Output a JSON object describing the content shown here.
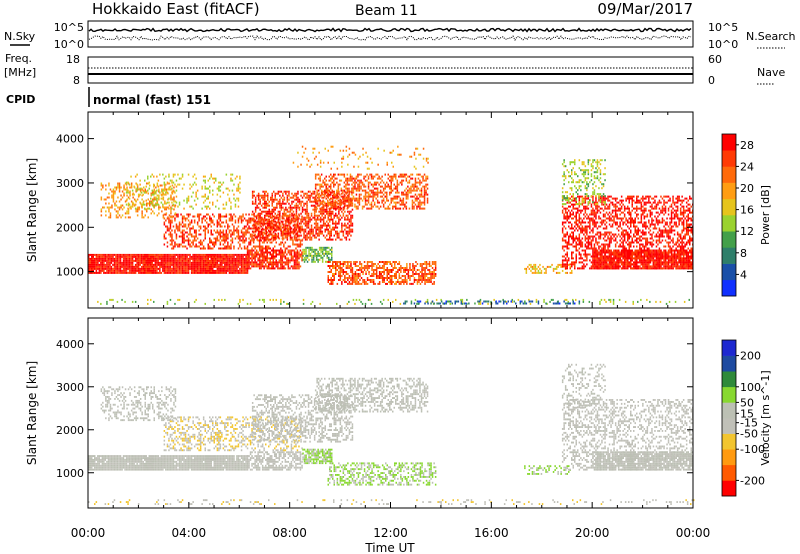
{
  "header": {
    "station": "Hokkaido East (fitACF)",
    "beam": "Beam 11",
    "date": "09/Mar/2017"
  },
  "small_panels": {
    "nsky_label": "N.Sky",
    "nsearch_label": "N.Search",
    "noise_ticks": [
      "10^5",
      "10^0"
    ],
    "freq_label_1": "Freq.",
    "freq_label_2": "[MHz]",
    "freq_ticks_left": [
      "18",
      "8"
    ],
    "nave_label": "Nave",
    "nave_ticks_right": [
      "60",
      "0"
    ],
    "cpid_label": "CPID",
    "cpid_text": "normal (fast) 151"
  },
  "colors": {
    "power": [
      "#1030ff",
      "#1a50a8",
      "#2e7f6a",
      "#43a04a",
      "#9ad22f",
      "#e6c41c",
      "#ff9d13",
      "#ff6a0a",
      "#ff3a04",
      "#ff0000"
    ],
    "velocity": [
      "#ff0000",
      "#ff5a00",
      "#ff9a10",
      "#f2c530",
      "#c0c0b8",
      "#bcc0b4",
      "#88d830",
      "#2f8a3a",
      "#1e4aa0",
      "#1d28d0"
    ]
  },
  "chart_data": [
    {
      "type": "heatmap",
      "name": "power",
      "xlabel": "",
      "ylabel": "Slant Range [km]",
      "x_range": [
        0,
        24
      ],
      "ylim": [
        180,
        4600
      ],
      "y_ticks": [
        1000,
        2000,
        3000,
        4000
      ],
      "colorbar": {
        "label": "Power [dB]",
        "ticks": [
          4,
          8,
          12,
          16,
          20,
          24,
          28
        ],
        "range": [
          0,
          30
        ]
      },
      "regions": [
        {
          "x": [
            0,
            6.3
          ],
          "y": [
            950,
            1400
          ],
          "value": 28,
          "density": 0.95
        },
        {
          "x": [
            6.3,
            8.5
          ],
          "y": [
            1050,
            1500
          ],
          "value": 26,
          "density": 0.8
        },
        {
          "x": [
            3.0,
            8.5
          ],
          "y": [
            1500,
            2300
          ],
          "value": 25,
          "density": 0.45
        },
        {
          "x": [
            6.5,
            10.5
          ],
          "y": [
            1700,
            2800
          ],
          "value": 26,
          "density": 0.55
        },
        {
          "x": [
            9.0,
            13.5
          ],
          "y": [
            2400,
            3200
          ],
          "value": 24,
          "density": 0.5
        },
        {
          "x": [
            0.5,
            3.5
          ],
          "y": [
            2200,
            3000
          ],
          "value": 20,
          "density": 0.3
        },
        {
          "x": [
            1.5,
            6.0
          ],
          "y": [
            2400,
            3200
          ],
          "value": 16,
          "density": 0.2
        },
        {
          "x": [
            8.5,
            9.7
          ],
          "y": [
            1200,
            1550
          ],
          "value": 12,
          "density": 0.7
        },
        {
          "x": [
            9.5,
            13.8
          ],
          "y": [
            700,
            1200
          ],
          "value": 24,
          "density": 0.6
        },
        {
          "x": [
            17.3,
            19.2
          ],
          "y": [
            950,
            1150
          ],
          "value": 18,
          "density": 0.4
        },
        {
          "x": [
            18.8,
            24
          ],
          "y": [
            1050,
            2700
          ],
          "value": 28,
          "density": 0.5
        },
        {
          "x": [
            20.0,
            24
          ],
          "y": [
            1050,
            1500
          ],
          "value": 28,
          "density": 0.85
        },
        {
          "x": [
            18.8,
            20.5
          ],
          "y": [
            2500,
            3500
          ],
          "value": 14,
          "density": 0.3
        },
        {
          "x": [
            8.0,
            13.5
          ],
          "y": [
            3300,
            3800
          ],
          "value": 20,
          "density": 0.08
        },
        {
          "x": [
            0,
            24
          ],
          "y": [
            250,
            380
          ],
          "value": 14,
          "density": 0.12
        },
        {
          "x": [
            12.5,
            19.5
          ],
          "y": [
            260,
            340
          ],
          "value": 6,
          "density": 0.35
        }
      ]
    },
    {
      "type": "heatmap",
      "name": "velocity",
      "xlabel": "Time UT",
      "ylabel": "Slant Range [km]",
      "x_range": [
        0,
        24
      ],
      "x_ticks": [
        "00:00",
        "04:00",
        "08:00",
        "12:00",
        "16:00",
        "20:00",
        "00:00"
      ],
      "ylim": [
        180,
        4600
      ],
      "y_ticks": [
        1000,
        2000,
        3000,
        4000
      ],
      "colorbar": {
        "label": "Velocity [m s^-1]",
        "ticks": [
          200,
          100,
          50,
          15,
          -15,
          -50,
          -100,
          -200
        ],
        "range": [
          -250,
          250
        ]
      },
      "regions": [
        {
          "x": [
            0,
            6.3
          ],
          "y": [
            1050,
            1400
          ],
          "value": 0,
          "density": 0.95
        },
        {
          "x": [
            6.3,
            8.5
          ],
          "y": [
            1050,
            1500
          ],
          "value": -20,
          "density": 0.6
        },
        {
          "x": [
            3.0,
            8.5
          ],
          "y": [
            1500,
            2300
          ],
          "value": -45,
          "density": 0.35
        },
        {
          "x": [
            6.5,
            10.5
          ],
          "y": [
            1700,
            2800
          ],
          "value": -10,
          "density": 0.45
        },
        {
          "x": [
            9.0,
            13.5
          ],
          "y": [
            2400,
            3200
          ],
          "value": 5,
          "density": 0.45
        },
        {
          "x": [
            0.5,
            3.5
          ],
          "y": [
            2200,
            3000
          ],
          "value": 0,
          "density": 0.35
        },
        {
          "x": [
            8.5,
            9.7
          ],
          "y": [
            1200,
            1550
          ],
          "value": 60,
          "density": 0.75
        },
        {
          "x": [
            9.5,
            13.8
          ],
          "y": [
            700,
            1200
          ],
          "value": 55,
          "density": 0.45
        },
        {
          "x": [
            17.3,
            19.2
          ],
          "y": [
            950,
            1150
          ],
          "value": 60,
          "density": 0.35
        },
        {
          "x": [
            18.8,
            24
          ],
          "y": [
            1050,
            2700
          ],
          "value": -20,
          "density": 0.35
        },
        {
          "x": [
            20.0,
            24
          ],
          "y": [
            1050,
            1500
          ],
          "value": 0,
          "density": 0.85
        },
        {
          "x": [
            18.8,
            20.5
          ],
          "y": [
            2500,
            3500
          ],
          "value": 0,
          "density": 0.25
        },
        {
          "x": [
            0,
            24
          ],
          "y": [
            250,
            380
          ],
          "value": -40,
          "density": 0.12
        }
      ]
    }
  ]
}
